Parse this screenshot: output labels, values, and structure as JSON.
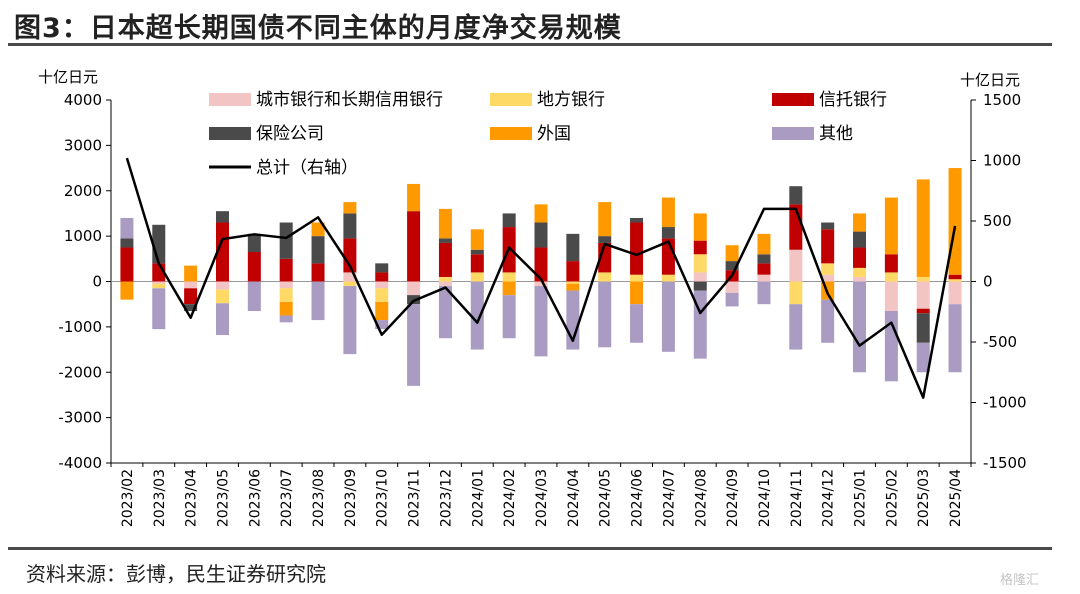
{
  "figure": {
    "title": "图3：日本超长期国债不同主体的月度净交易规模",
    "source": "资料来源：彭博，民生证券研究院",
    "watermark": "格隆汇"
  },
  "chart_data": {
    "type": "bar",
    "stacked": true,
    "title": "日本超长期国债不同主体的月度净交易规模",
    "ylabel": "十亿日元",
    "y2label": "十亿日元",
    "ylim": [
      -4000,
      4000
    ],
    "y2lim": [
      -1500,
      1500
    ],
    "yticks": [
      "4000",
      "3000",
      "2000",
      "1000",
      "0",
      "-1000",
      "-2000",
      "-3000",
      "-4000"
    ],
    "y2ticks": [
      "1500",
      "1000",
      "500",
      "0",
      "-500",
      "-1000",
      "-1500"
    ],
    "legend_position": "top",
    "categories": [
      "2023/02",
      "2023/03",
      "2023/04",
      "2023/05",
      "2023/06",
      "2023/07",
      "2023/08",
      "2023/09",
      "2023/10",
      "2023/11",
      "2023/12",
      "2024/01",
      "2024/02",
      "2024/03",
      "2024/04",
      "2024/05",
      "2024/06",
      "2024/07",
      "2024/08",
      "2024/09",
      "2024/10",
      "2024/11",
      "2024/12",
      "2025/01",
      "2025/02",
      "2025/03",
      "2025/04"
    ],
    "series": [
      {
        "name": "城市银行和长期信用银行",
        "color": "#f2c4c3",
        "axis": "left",
        "values": [
          0,
          -50,
          -150,
          -180,
          0,
          -150,
          0,
          200,
          -150,
          -300,
          -100,
          0,
          0,
          -100,
          0,
          0,
          0,
          0,
          200,
          -250,
          150,
          700,
          150,
          100,
          -650,
          -600,
          -500
        ]
      },
      {
        "name": "地方银行",
        "color": "#ffd966",
        "axis": "left",
        "values": [
          0,
          -100,
          0,
          -300,
          0,
          -300,
          0,
          -100,
          -300,
          0,
          100,
          200,
          200,
          0,
          -50,
          200,
          150,
          150,
          400,
          0,
          0,
          -500,
          250,
          200,
          200,
          100,
          50
        ]
      },
      {
        "name": "信托银行",
        "color": "#c00000",
        "axis": "left",
        "values": [
          750,
          400,
          -350,
          1300,
          650,
          500,
          400,
          750,
          200,
          1550,
          750,
          400,
          1000,
          750,
          450,
          650,
          1150,
          800,
          300,
          250,
          250,
          1000,
          750,
          450,
          400,
          -100,
          100
        ]
      },
      {
        "name": "保险公司",
        "color": "#4a4a4a",
        "axis": "left",
        "values": [
          200,
          850,
          -150,
          250,
          400,
          800,
          600,
          550,
          200,
          -200,
          100,
          100,
          300,
          550,
          600,
          150,
          100,
          250,
          -200,
          200,
          200,
          400,
          150,
          350,
          0,
          -650,
          0
        ]
      },
      {
        "name": "外国",
        "color": "#ff9900",
        "axis": "left",
        "values": [
          -400,
          0,
          350,
          0,
          0,
          -300,
          300,
          250,
          -400,
          600,
          650,
          450,
          -300,
          400,
          -150,
          750,
          -500,
          650,
          600,
          350,
          450,
          0,
          -400,
          400,
          1250,
          2150,
          2350
        ]
      },
      {
        "name": "其他",
        "color": "#a99bc2",
        "axis": "left",
        "values": [
          450,
          -900,
          0,
          -700,
          -650,
          -150,
          -850,
          -1500,
          -200,
          -1800,
          -1150,
          -1500,
          -950,
          -1550,
          -1300,
          -1450,
          -850,
          -1550,
          -1500,
          -300,
          -500,
          -1000,
          -950,
          -2000,
          -1550,
          -650,
          -1500
        ]
      },
      {
        "name": "总计（右轴）",
        "color": "#000000",
        "axis": "right",
        "type": "line",
        "values": [
          1020,
          150,
          -300,
          350,
          390,
          360,
          530,
          130,
          -440,
          -160,
          -50,
          -340,
          280,
          20,
          -490,
          310,
          220,
          330,
          -260,
          50,
          600,
          600,
          -100,
          -530,
          -340,
          -960,
          460
        ]
      }
    ]
  }
}
